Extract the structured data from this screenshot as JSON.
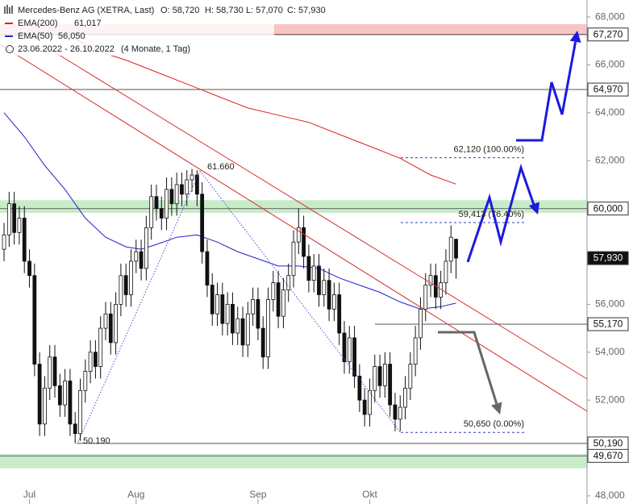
{
  "chart_data": {
    "type": "candlestick",
    "title": "Mercedes-Benz AG (XETRA, Last)",
    "ohlc_labels": [
      "O: 58,720",
      "H: 58,730",
      "L: 57,070",
      "C: 57,930"
    ],
    "range_label": "23.06.2022 - 26.10.2022",
    "range_note": "(4 Monate, 1 Tag)",
    "xlim": [
      -0.8,
      114.8
    ],
    "ylim": [
      47.66,
      68.71
    ],
    "xticks": [
      {
        "value": 5,
        "label": "Jul"
      },
      {
        "value": 26,
        "label": "Aug"
      },
      {
        "value": 50,
        "label": "Sep"
      },
      {
        "value": 72,
        "label": "Okt"
      }
    ],
    "yticks": [
      {
        "value": 48,
        "label": "48,000"
      },
      {
        "value": 50,
        "label": "50,000"
      },
      {
        "value": 52,
        "label": "52,000"
      },
      {
        "value": 54,
        "label": "54,000"
      },
      {
        "value": 56,
        "label": "56,000"
      },
      {
        "value": 58,
        "label": "58,000"
      },
      {
        "value": 60,
        "label": "60,000"
      },
      {
        "value": 62,
        "label": "62,000"
      },
      {
        "value": 64,
        "label": "64,000"
      },
      {
        "value": 66,
        "label": "66,000"
      },
      {
        "value": 68,
        "label": "68,000"
      }
    ],
    "open": [
      58.3,
      58.9,
      60.2,
      59.0,
      59.6,
      57.8,
      57.2,
      53.5,
      51.0,
      52.5,
      53.8,
      52.6,
      51.8,
      52.8,
      51.0,
      50.6,
      52.4,
      53.2,
      54.0,
      53.4,
      55.0,
      55.6,
      54.4,
      56.0,
      57.2,
      56.4,
      57.8,
      58.2,
      57.5,
      59.2,
      60.5,
      60.0,
      59.6,
      60.8,
      60.2,
      61.0,
      60.6,
      61.2,
      61.4,
      60.6,
      58.2,
      56.8,
      55.6,
      56.4,
      55.2,
      56.0,
      54.8,
      55.4,
      54.3,
      55.6,
      56.2,
      55.0,
      53.8,
      56.2,
      56.9,
      55.5,
      56.6,
      57.2,
      58.6,
      59.2,
      58.0,
      57.0,
      57.6,
      56.4,
      57.0,
      55.8,
      56.4,
      54.8,
      53.6,
      54.6,
      53.0,
      52.0,
      51.4,
      52.4,
      53.4,
      52.6,
      53.5,
      51.8,
      51.2,
      51.7,
      52.5,
      53.5,
      54.6,
      55.8,
      56.8,
      57.2,
      56.3,
      56.9,
      57.8,
      58.72
    ],
    "high": [
      59.4,
      60.7,
      60.7,
      60.1,
      60.1,
      58.3,
      57.7,
      54.0,
      53.0,
      54.3,
      54.3,
      53.1,
      53.3,
      53.3,
      51.5,
      52.9,
      53.7,
      54.5,
      54.5,
      55.5,
      56.1,
      56.1,
      56.5,
      57.7,
      57.7,
      58.3,
      58.7,
      58.7,
      59.7,
      61.0,
      61.0,
      60.5,
      61.3,
      61.3,
      61.5,
      61.5,
      61.6,
      61.66,
      61.6,
      61.1,
      58.7,
      57.3,
      56.9,
      56.9,
      56.5,
      56.5,
      55.9,
      55.9,
      56.1,
      56.7,
      56.7,
      55.5,
      56.7,
      57.4,
      57.4,
      57.1,
      57.7,
      59.1,
      60.0,
      59.7,
      58.5,
      58.1,
      58.1,
      57.5,
      57.5,
      56.9,
      56.9,
      55.3,
      55.1,
      55.1,
      53.5,
      52.5,
      52.9,
      53.9,
      53.9,
      54.0,
      54.0,
      52.3,
      52.2,
      53.0,
      54.0,
      55.1,
      56.3,
      57.3,
      57.7,
      57.7,
      57.4,
      58.3,
      59.3,
      58.73
    ],
    "low": [
      57.8,
      58.4,
      58.5,
      58.5,
      57.3,
      56.7,
      53.0,
      50.5,
      50.5,
      52.0,
      52.1,
      51.3,
      51.3,
      50.5,
      50.19,
      50.3,
      51.9,
      52.7,
      52.9,
      52.9,
      54.5,
      53.9,
      53.9,
      55.5,
      55.9,
      55.9,
      57.3,
      57.0,
      57.0,
      58.7,
      59.5,
      59.1,
      59.1,
      59.7,
      59.7,
      60.1,
      60.1,
      60.7,
      60.1,
      57.7,
      56.3,
      55.1,
      55.1,
      54.7,
      54.7,
      54.3,
      54.3,
      53.8,
      53.8,
      55.1,
      54.5,
      53.3,
      53.3,
      55.7,
      55.0,
      55.0,
      56.1,
      56.7,
      58.1,
      57.5,
      56.5,
      56.5,
      55.9,
      55.9,
      55.3,
      55.3,
      54.3,
      53.1,
      53.1,
      52.5,
      51.5,
      50.9,
      50.9,
      51.9,
      52.1,
      52.1,
      51.3,
      50.7,
      50.7,
      51.2,
      52.0,
      53.0,
      54.1,
      55.3,
      56.3,
      55.8,
      55.8,
      56.4,
      57.3,
      57.07
    ],
    "close": [
      58.9,
      60.2,
      59.0,
      59.6,
      57.8,
      57.2,
      53.5,
      51.0,
      52.5,
      53.8,
      52.6,
      51.8,
      52.8,
      51.0,
      50.6,
      52.4,
      53.2,
      54.0,
      53.4,
      55.0,
      55.6,
      54.4,
      56.0,
      57.2,
      56.4,
      57.8,
      58.2,
      57.5,
      59.2,
      60.5,
      60.0,
      59.6,
      60.8,
      60.2,
      61.0,
      60.6,
      61.2,
      61.4,
      60.6,
      58.2,
      56.8,
      55.6,
      56.4,
      55.2,
      56.0,
      54.8,
      55.4,
      54.3,
      55.6,
      56.2,
      55.0,
      53.8,
      56.2,
      56.9,
      55.5,
      56.6,
      57.2,
      58.6,
      59.2,
      58.0,
      57.0,
      57.6,
      56.4,
      57.0,
      55.8,
      56.4,
      54.8,
      53.6,
      54.6,
      53.0,
      52.0,
      51.4,
      52.4,
      53.4,
      52.6,
      53.5,
      51.8,
      51.2,
      51.7,
      52.5,
      53.5,
      54.6,
      55.8,
      56.8,
      57.2,
      56.3,
      56.9,
      57.8,
      58.8,
      57.93
    ],
    "up_color": "#ffffff",
    "down_color": "#111111",
    "series": [
      {
        "name": "EMA(200)",
        "value_label": "61,017",
        "color": "#e02020",
        "x": [
          14,
          18,
          24,
          30,
          36,
          42,
          48,
          54,
          60,
          66,
          72,
          78,
          84,
          89
        ],
        "values": [
          67.1,
          66.6,
          66.2,
          65.7,
          65.2,
          64.7,
          64.2,
          63.9,
          63.6,
          63.1,
          62.6,
          62.1,
          61.4,
          61.02
        ]
      },
      {
        "name": "EMA(50)",
        "value_label": "56,050",
        "color": "#2020d0",
        "x": [
          0,
          4,
          8,
          12,
          16,
          20,
          24,
          27,
          30,
          34,
          38,
          42,
          46,
          50,
          54,
          58,
          62,
          66,
          70,
          74,
          78,
          82,
          86,
          89
        ],
        "values": [
          64.0,
          63.0,
          61.8,
          60.8,
          59.6,
          58.8,
          58.4,
          58.3,
          58.5,
          58.8,
          58.9,
          58.6,
          58.2,
          57.9,
          57.6,
          57.6,
          57.5,
          57.1,
          56.8,
          56.5,
          56.1,
          55.8,
          55.9,
          56.05
        ]
      }
    ],
    "zones": [
      {
        "from": 67.23,
        "to": 67.7,
        "color": "#f8c4c4"
      },
      {
        "from": 59.82,
        "to": 60.35,
        "color": "#c8ecc8"
      },
      {
        "from": 49.15,
        "to": 49.75,
        "color": "#c8ecc8"
      }
    ],
    "price_levels": [
      {
        "value": 67.27,
        "label": "67,270"
      },
      {
        "value": 64.97,
        "label": "64,970"
      },
      {
        "value": 60.0,
        "label": "60,000"
      },
      {
        "value": 57.93,
        "label": "57,930"
      },
      {
        "value": 55.17,
        "label": "55,170"
      },
      {
        "value": 50.19,
        "label": "50,190"
      },
      {
        "value": 49.67,
        "label": "49,670"
      }
    ],
    "fibonacci": {
      "high_label": "61.660",
      "low_label": "50.190",
      "levels": [
        {
          "value": 62.12,
          "label": "62,120 (100.00%)"
        },
        {
          "value": 59.413,
          "label": "59,413 (76.40%)"
        },
        {
          "value": 50.65,
          "label": "50,650 (0.00%)"
        }
      ]
    }
  }
}
